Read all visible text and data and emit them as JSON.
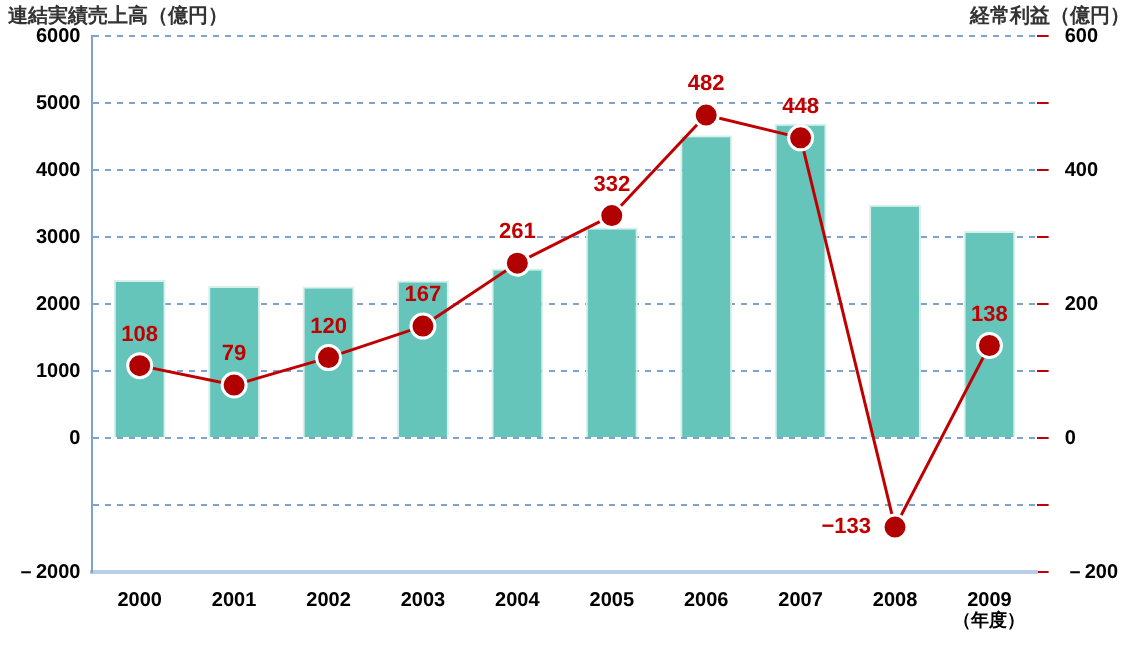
{
  "chart_data": {
    "type": "bar",
    "ylabel": "連結実績売上高（億円）",
    "y2label": "経常利益（億円）",
    "xlabel": "（年度）",
    "categories": [
      "2000",
      "2001",
      "2002",
      "2003",
      "2004",
      "2005",
      "2006",
      "2007",
      "2008",
      "2009"
    ],
    "series": [
      {
        "color": "#66c5bb",
        "values": [
          2360,
          2270,
          2260,
          2350,
          2530,
          3140,
          4520,
          4690,
          3480,
          3090
        ]
      },
      {
        "type": "line",
        "axis": "y2",
        "color": "#c00000",
        "values": [
          108,
          79,
          120,
          167,
          261,
          332,
          482,
          448,
          -133,
          138
        ],
        "value_labels": [
          "108",
          "79",
          "120",
          "167",
          "261",
          "332",
          "482",
          "448",
          "−133",
          "138"
        ]
      }
    ],
    "ylim": [
      -2000,
      6000
    ],
    "yticks": [
      {
        "value": -2000,
        "label": "－2000"
      },
      {
        "value": -1000,
        "label": null
      },
      0,
      1000,
      2000,
      3000,
      4000,
      5000,
      6000
    ],
    "y2lim": [
      -200,
      600
    ],
    "y2ticks": [
      {
        "value": -200,
        "label": "－200"
      },
      {
        "value": -100,
        "label": null
      },
      0,
      {
        "value": 100,
        "label": null
      },
      200,
      {
        "value": 300,
        "label": null
      },
      400,
      {
        "value": 500,
        "label": null
      },
      600
    ],
    "grid": "y",
    "legend": false,
    "marker": "circle",
    "line_style": "solid"
  }
}
